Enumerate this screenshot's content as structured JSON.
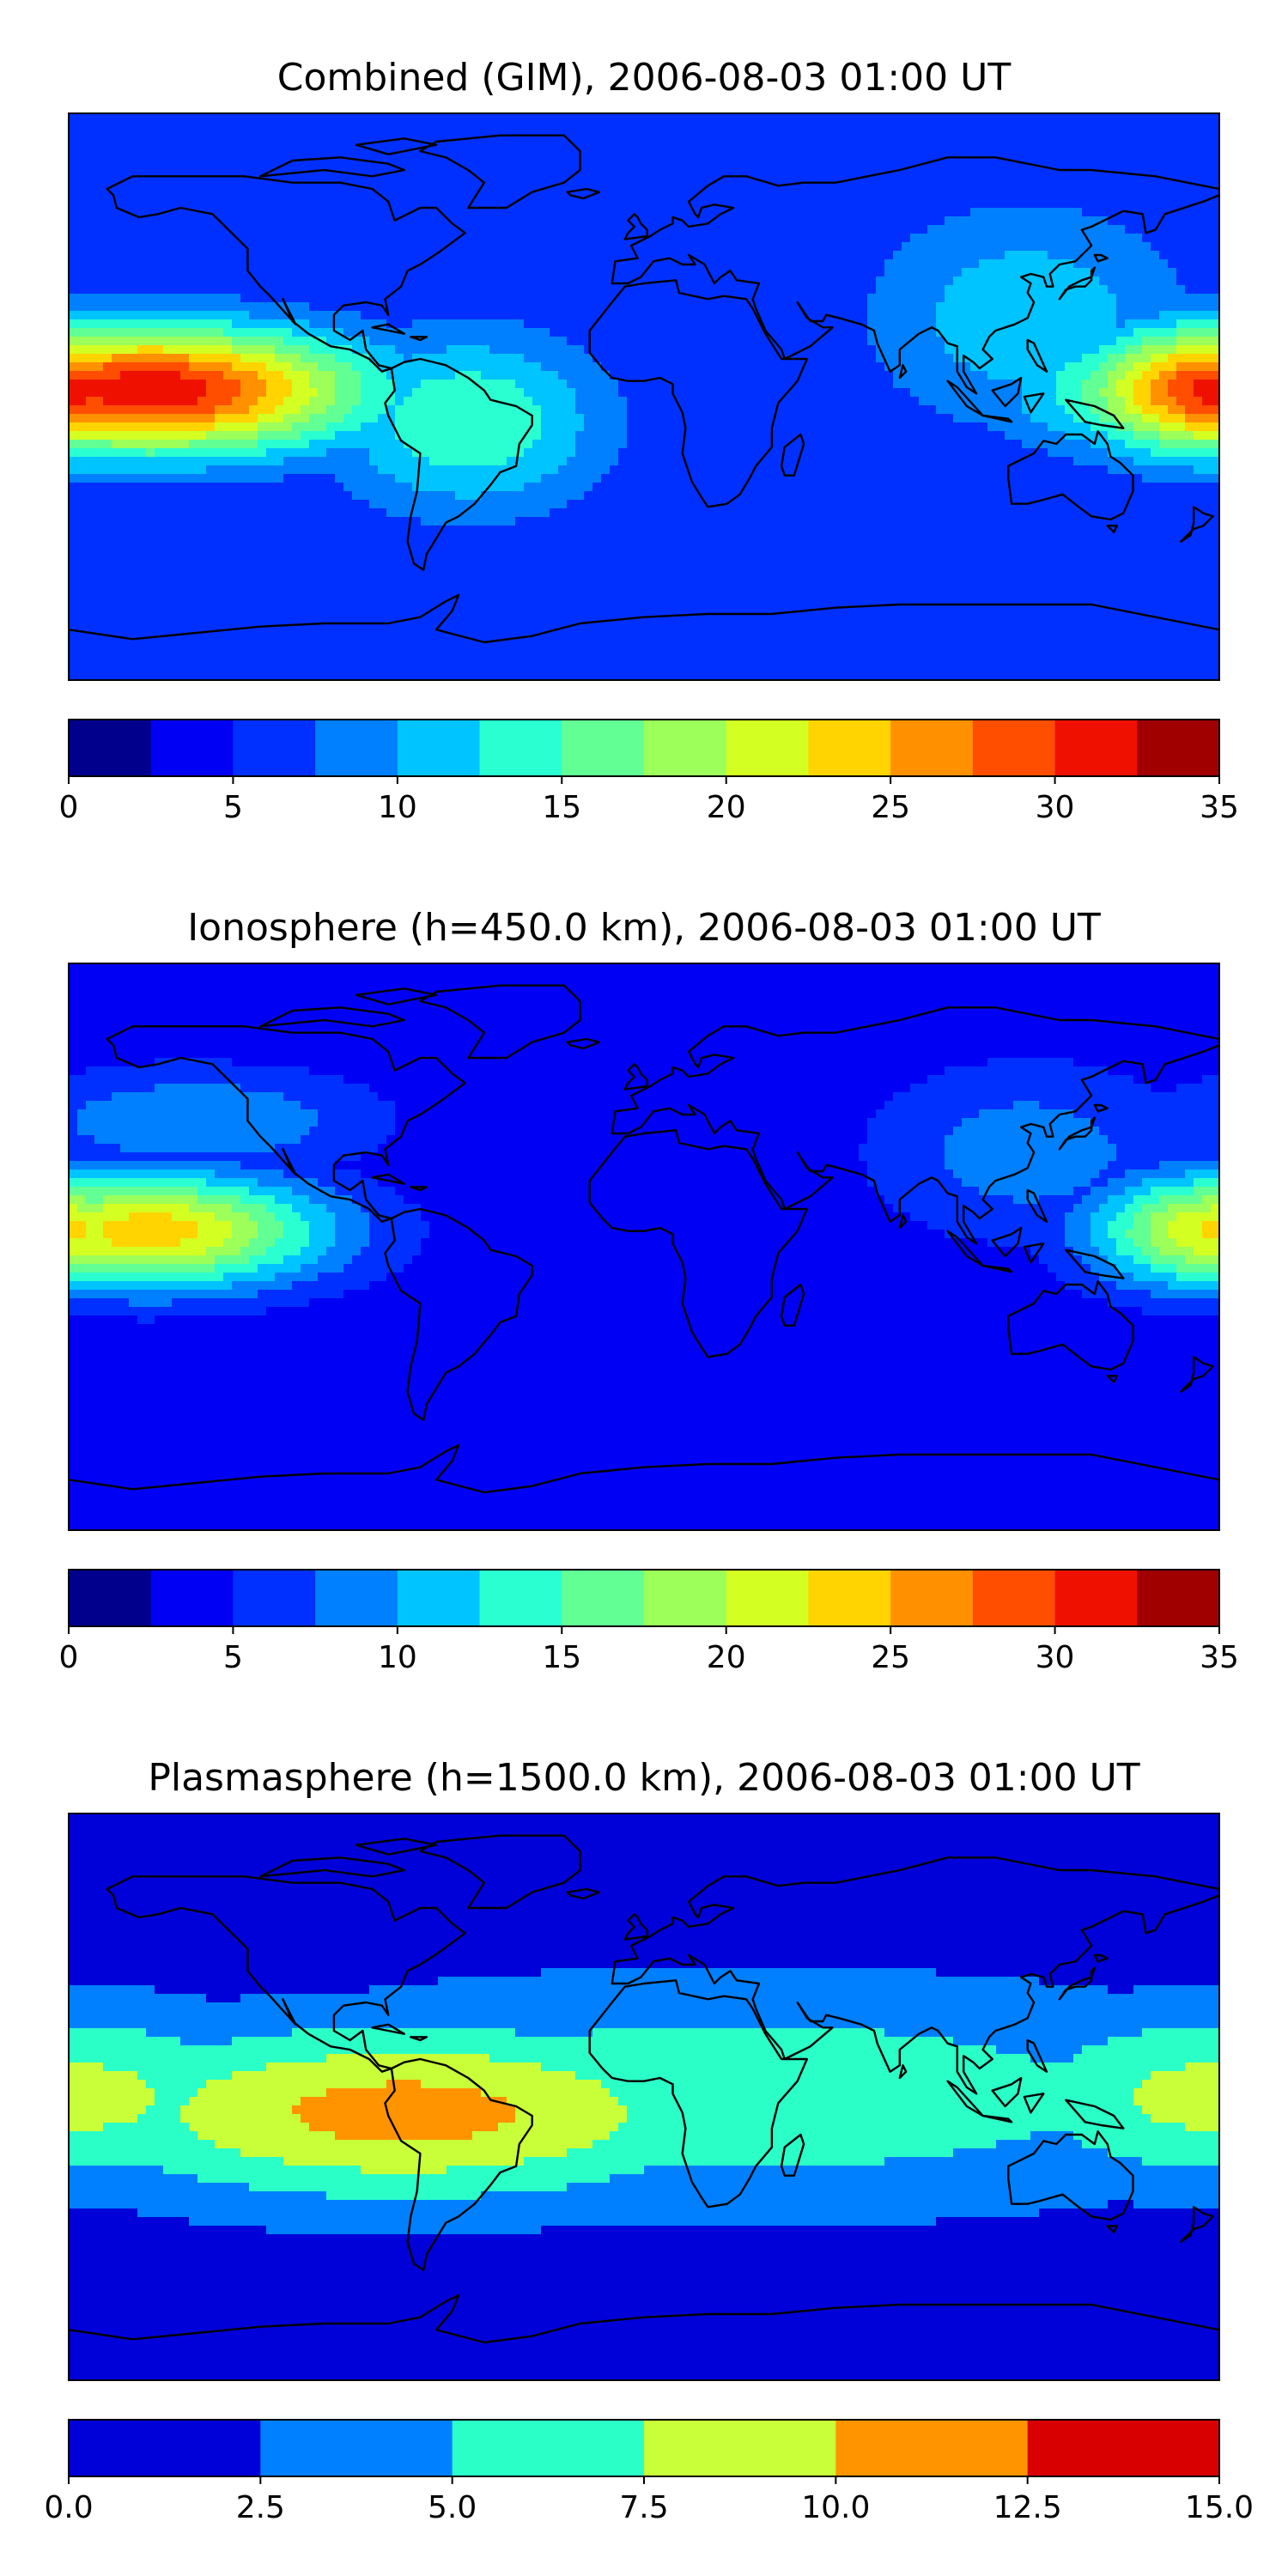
{
  "chart_data": [
    {
      "type": "heatmap",
      "title": "Combined (GIM), 2006-08-03 01:00 UT",
      "colorbar": {
        "ticks": [
          "0",
          "5",
          "10",
          "15",
          "20",
          "25",
          "30",
          "35"
        ],
        "range": [
          0,
          35
        ],
        "step": 2.5,
        "colors": [
          "#00008d",
          "#0000f5",
          "#0030ff",
          "#0080ff",
          "#00c4ff",
          "#2affd2",
          "#62ff94",
          "#9cff5a",
          "#d4ff22",
          "#ffd400",
          "#ff9000",
          "#ff4e00",
          "#f01000",
          "#a00000"
        ]
      },
      "blobs": [
        {
          "lon": -155,
          "lat": 2,
          "peak": 32,
          "slon": 48,
          "slat": 14
        },
        {
          "lon": 180,
          "lat": 2,
          "peak": 31,
          "slon": 30,
          "slat": 14
        },
        {
          "lon": -55,
          "lat": -8,
          "peak": 15,
          "slon": 30,
          "slat": 20
        },
        {
          "lon": 120,
          "lat": 25,
          "peak": 12,
          "slon": 35,
          "slat": 25
        }
      ],
      "background": 5
    },
    {
      "type": "heatmap",
      "title": "Ionosphere  (h=450.0 km), 2006-08-03 01:00 UT",
      "colorbar": {
        "ticks": [
          "0",
          "5",
          "10",
          "15",
          "20",
          "25",
          "30",
          "35"
        ],
        "range": [
          0,
          35
        ],
        "step": 2.5,
        "colors": [
          "#00008d",
          "#0000f5",
          "#0030ff",
          "#0080ff",
          "#00c4ff",
          "#2affd2",
          "#62ff94",
          "#9cff5a",
          "#d4ff22",
          "#ffd400",
          "#ff9000",
          "#ff4e00",
          "#f01000",
          "#a00000"
        ]
      },
      "blobs": [
        {
          "lon": -155,
          "lat": 5,
          "peak": 24,
          "slon": 40,
          "slat": 13
        },
        {
          "lon": 180,
          "lat": 5,
          "peak": 23,
          "slon": 28,
          "slat": 13
        },
        {
          "lon": -140,
          "lat": 40,
          "peak": 10,
          "slon": 40,
          "slat": 12
        },
        {
          "lon": 120,
          "lat": 30,
          "peak": 9,
          "slon": 35,
          "slat": 20
        }
      ],
      "background": 3
    },
    {
      "type": "heatmap",
      "title": "Plasmasphere (h=1500.0 km), 2006-08-03 01:00 UT",
      "colorbar": {
        "ticks": [
          "0.0",
          "2.5",
          "5.0",
          "7.5",
          "10.0",
          "12.5",
          "15.0"
        ],
        "range": [
          0,
          15
        ],
        "step": 2.5,
        "colors": [
          "#0000d8",
          "#0080ff",
          "#2affc8",
          "#c8ff38",
          "#ff9400",
          "#d80000"
        ]
      },
      "blobs": [
        {
          "lon": -75,
          "lat": -5,
          "peak": 11,
          "slon": 75,
          "slat": 20
        },
        {
          "lon": 30,
          "lat": 0,
          "peak": 7,
          "slon": 120,
          "slat": 25
        },
        {
          "lon": 180,
          "lat": 0,
          "peak": 8.5,
          "slon": 50,
          "slat": 20
        }
      ],
      "background": 1
    }
  ]
}
